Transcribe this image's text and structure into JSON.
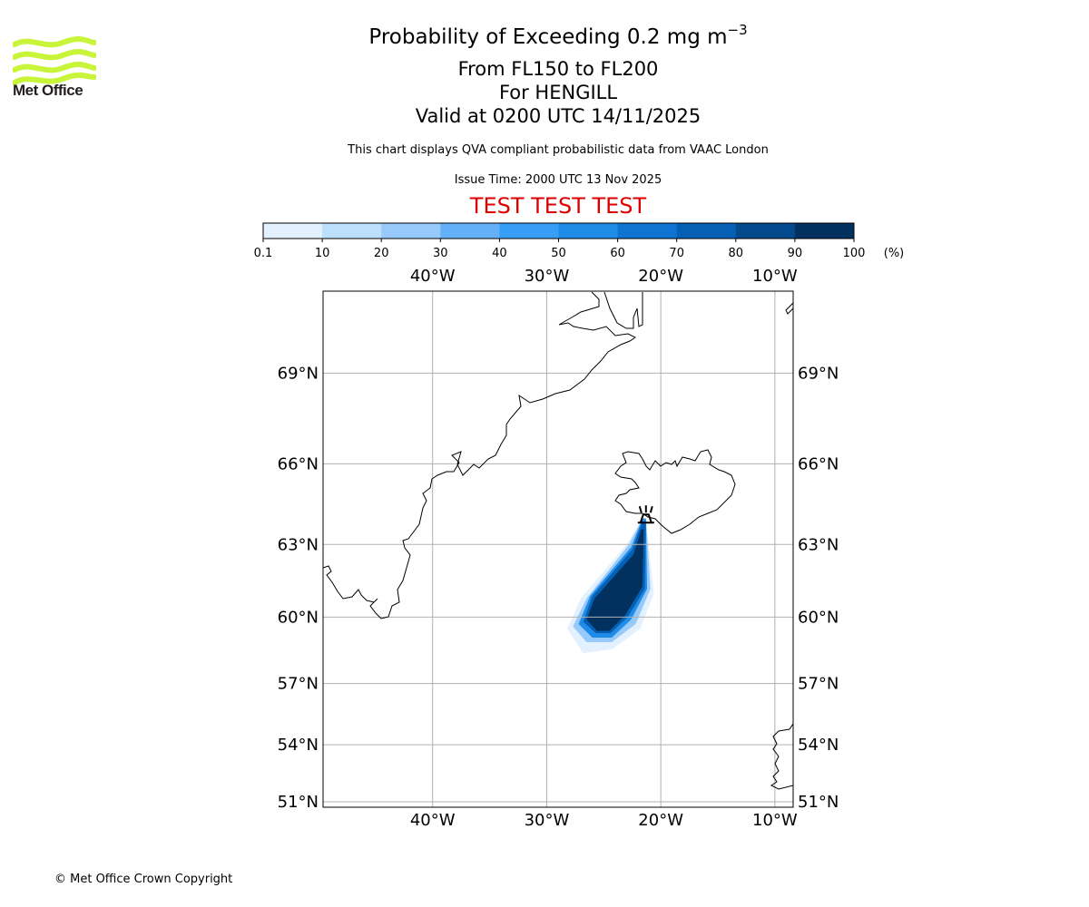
{
  "logo": {
    "text": "Met Office",
    "color": "#c8f53a"
  },
  "header": {
    "title_main": "Probability of Exceeding 0.2 mg m",
    "title_superscript": "−3",
    "level_range": "From FL150 to FL200",
    "volcano": "For HENGILL",
    "valid_time": "Valid at 0200 UTC 14/11/2025",
    "description": "This chart displays QVA compliant probabilistic data from VAAC London",
    "issue_time": "Issue Time: 2000 UTC 13 Nov 2025",
    "test_banner": "TEST TEST TEST",
    "test_banner_color": "#dd0000"
  },
  "footer": {
    "copyright": "© Met Office Crown Copyright"
  },
  "chart_data": {
    "type": "heatmap",
    "title": "Probability of Exceeding 0.2 mg m−3",
    "colorbar": {
      "unit_label": "(%)",
      "bounds": [
        0.1,
        10,
        20,
        30,
        40,
        50,
        60,
        70,
        80,
        90,
        100
      ],
      "tick_labels": [
        "0.1",
        "10",
        "20",
        "30",
        "40",
        "50",
        "60",
        "70",
        "80",
        "90",
        "100"
      ],
      "colors": [
        "#e3f0fd",
        "#bcdffc",
        "#97cafb",
        "#64b0f8",
        "#379ef6",
        "#1f8ce8",
        "#0f73d2",
        "#0560b4",
        "#034a8c",
        "#02305f"
      ]
    },
    "map_extent": {
      "lon_min": -49.6,
      "lon_max": -8.4,
      "lat_min": 50.7,
      "lat_max": 71.4
    },
    "gridlines": true,
    "lon_ticks": [
      -40,
      -30,
      -20,
      -10
    ],
    "lon_tick_labels": [
      "40°W",
      "30°W",
      "20°W",
      "10°W"
    ],
    "lat_ticks": [
      69,
      66,
      63,
      60,
      57,
      54,
      51
    ],
    "lat_tick_labels": [
      "69°N",
      "66°N",
      "63°N",
      "60°N",
      "57°N",
      "54°N",
      "51°N"
    ],
    "volcano_marker": {
      "name": "HENGILL",
      "lon": -21.3,
      "lat": 64.05
    },
    "plume_layers": [
      {
        "class_index": 0,
        "probability": "0.1-10",
        "polygon": [
          [
            -21.3,
            64.0
          ],
          [
            -20.6,
            61.0
          ],
          [
            -21.8,
            59.5
          ],
          [
            -24.2,
            58.6
          ],
          [
            -26.8,
            58.4
          ],
          [
            -28.2,
            59.5
          ],
          [
            -27.0,
            60.8
          ],
          [
            -23.0,
            63.0
          ],
          [
            -21.6,
            64.0
          ]
        ]
      },
      {
        "class_index": 2,
        "probability": "20-30",
        "polygon": [
          [
            -21.3,
            64.0
          ],
          [
            -20.9,
            61.2
          ],
          [
            -22.2,
            59.7
          ],
          [
            -24.3,
            58.9
          ],
          [
            -26.5,
            58.9
          ],
          [
            -27.7,
            59.6
          ],
          [
            -26.5,
            60.8
          ],
          [
            -22.8,
            63.0
          ],
          [
            -21.6,
            64.0
          ]
        ]
      },
      {
        "class_index": 5,
        "probability": "50-60",
        "polygon": [
          [
            -21.3,
            64.0
          ],
          [
            -21.2,
            61.2
          ],
          [
            -22.6,
            59.9
          ],
          [
            -24.3,
            59.1
          ],
          [
            -26.0,
            59.1
          ],
          [
            -27.2,
            59.7
          ],
          [
            -26.2,
            60.9
          ],
          [
            -22.6,
            62.9
          ],
          [
            -21.6,
            64.0
          ]
        ]
      },
      {
        "class_index": 7,
        "probability": "70-80",
        "polygon": [
          [
            -21.3,
            63.9
          ],
          [
            -21.4,
            61.2
          ],
          [
            -22.9,
            60.0
          ],
          [
            -24.4,
            59.3
          ],
          [
            -25.7,
            59.3
          ],
          [
            -26.8,
            59.8
          ],
          [
            -26.0,
            60.9
          ],
          [
            -22.5,
            62.8
          ],
          [
            -21.6,
            63.9
          ]
        ]
      },
      {
        "class_index": 9,
        "probability": "90-100",
        "polygon": [
          [
            -21.5,
            63.6
          ],
          [
            -21.6,
            61.3
          ],
          [
            -23.1,
            60.1
          ],
          [
            -24.5,
            59.4
          ],
          [
            -25.6,
            59.4
          ],
          [
            -26.5,
            59.9
          ],
          [
            -25.8,
            60.8
          ],
          [
            -22.4,
            62.6
          ],
          [
            -21.7,
            63.6
          ]
        ]
      }
    ]
  }
}
